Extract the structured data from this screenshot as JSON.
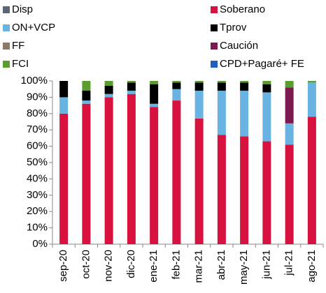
{
  "chart_data": {
    "type": "stacked_bar",
    "categories": [
      "sep-20",
      "oct-20",
      "nov-20",
      "dic-20",
      "ene-21",
      "feb-21",
      "mar-21",
      "abr-21",
      "may-21",
      "jun-21",
      "jul-21",
      "ago-21"
    ],
    "series": [
      {
        "name": "Disp",
        "color": "#5b6775",
        "values": [
          0,
          0,
          0,
          0,
          0,
          0,
          0,
          0,
          0,
          0,
          0,
          0
        ]
      },
      {
        "name": "Soberano",
        "color": "#d7123f",
        "values": [
          80,
          86,
          90,
          92,
          84,
          88,
          77,
          67,
          66,
          63,
          61,
          78
        ]
      },
      {
        "name": "ON+VCP",
        "color": "#69b3e3",
        "values": [
          10,
          2,
          2,
          2,
          2,
          7,
          17,
          27,
          28,
          30,
          13,
          21
        ]
      },
      {
        "name": "Tprov",
        "color": "#000000",
        "values": [
          10,
          6,
          5,
          5,
          12,
          4,
          5,
          5,
          5,
          5,
          0,
          0
        ]
      },
      {
        "name": "FF",
        "color": "#8b7a68",
        "values": [
          0,
          0,
          0,
          0,
          0,
          0,
          0,
          0,
          0,
          0,
          0,
          0
        ]
      },
      {
        "name": "Caución",
        "color": "#7a1a50",
        "values": [
          0,
          0,
          0,
          0,
          0,
          0,
          0,
          0,
          0,
          0,
          22,
          0
        ]
      },
      {
        "name": "FCI",
        "color": "#5a9e2f",
        "values": [
          0,
          6,
          3,
          1,
          2,
          1,
          1,
          1,
          1,
          2,
          4,
          1
        ]
      },
      {
        "name": "CPD+Pagaré+ FE",
        "color": "#1f5fbf",
        "values": [
          0,
          0,
          0,
          0,
          0,
          0,
          0,
          0,
          0,
          0,
          0,
          0
        ]
      }
    ],
    "ylim": [
      0,
      100
    ],
    "yticks": [
      {
        "value": 0,
        "label": "0%"
      },
      {
        "value": 10,
        "label": "10%"
      },
      {
        "value": 20,
        "label": "20%"
      },
      {
        "value": 30,
        "label": "30%"
      },
      {
        "value": 40,
        "label": "40%"
      },
      {
        "value": 50,
        "label": "50%"
      },
      {
        "value": 60,
        "label": "60%"
      },
      {
        "value": 70,
        "label": "70%"
      },
      {
        "value": 80,
        "label": "80%"
      },
      {
        "value": 90,
        "label": "90%"
      },
      {
        "value": 100,
        "label": "100%"
      }
    ],
    "grid": false
  }
}
